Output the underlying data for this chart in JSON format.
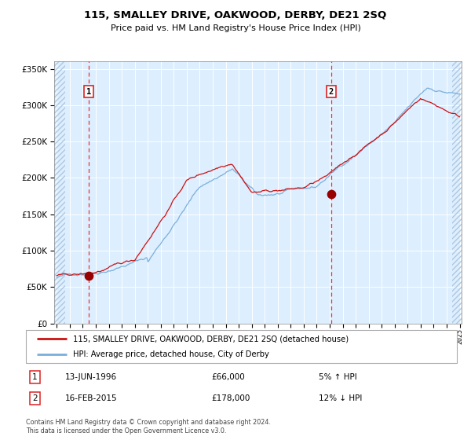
{
  "title1": "115, SMALLEY DRIVE, OAKWOOD, DERBY, DE21 2SQ",
  "title2": "Price paid vs. HM Land Registry's House Price Index (HPI)",
  "legend_line1": "115, SMALLEY DRIVE, OAKWOOD, DERBY, DE21 2SQ (detached house)",
  "legend_line2": "HPI: Average price, detached house, City of Derby",
  "transaction1_date": "13-JUN-1996",
  "transaction1_price": 66000,
  "transaction1_hpi": "5% ↑ HPI",
  "transaction2_date": "16-FEB-2015",
  "transaction2_price": 178000,
  "transaction2_hpi": "12% ↓ HPI",
  "footnote": "Contains HM Land Registry data © Crown copyright and database right 2024.\nThis data is licensed under the Open Government Licence v3.0.",
  "ylim": [
    0,
    360000
  ],
  "year_start": 1994,
  "year_end": 2025,
  "hpi_color": "#7aafdb",
  "house_color": "#cc1111",
  "bg_color": "#ddeeff",
  "hatch_color": "#c0d5e8",
  "grid_color": "#ffffff",
  "dashed_line_color": "#ee3333",
  "marker_color": "#990000",
  "transaction1_year": 1996.45,
  "transaction2_year": 2015.12
}
